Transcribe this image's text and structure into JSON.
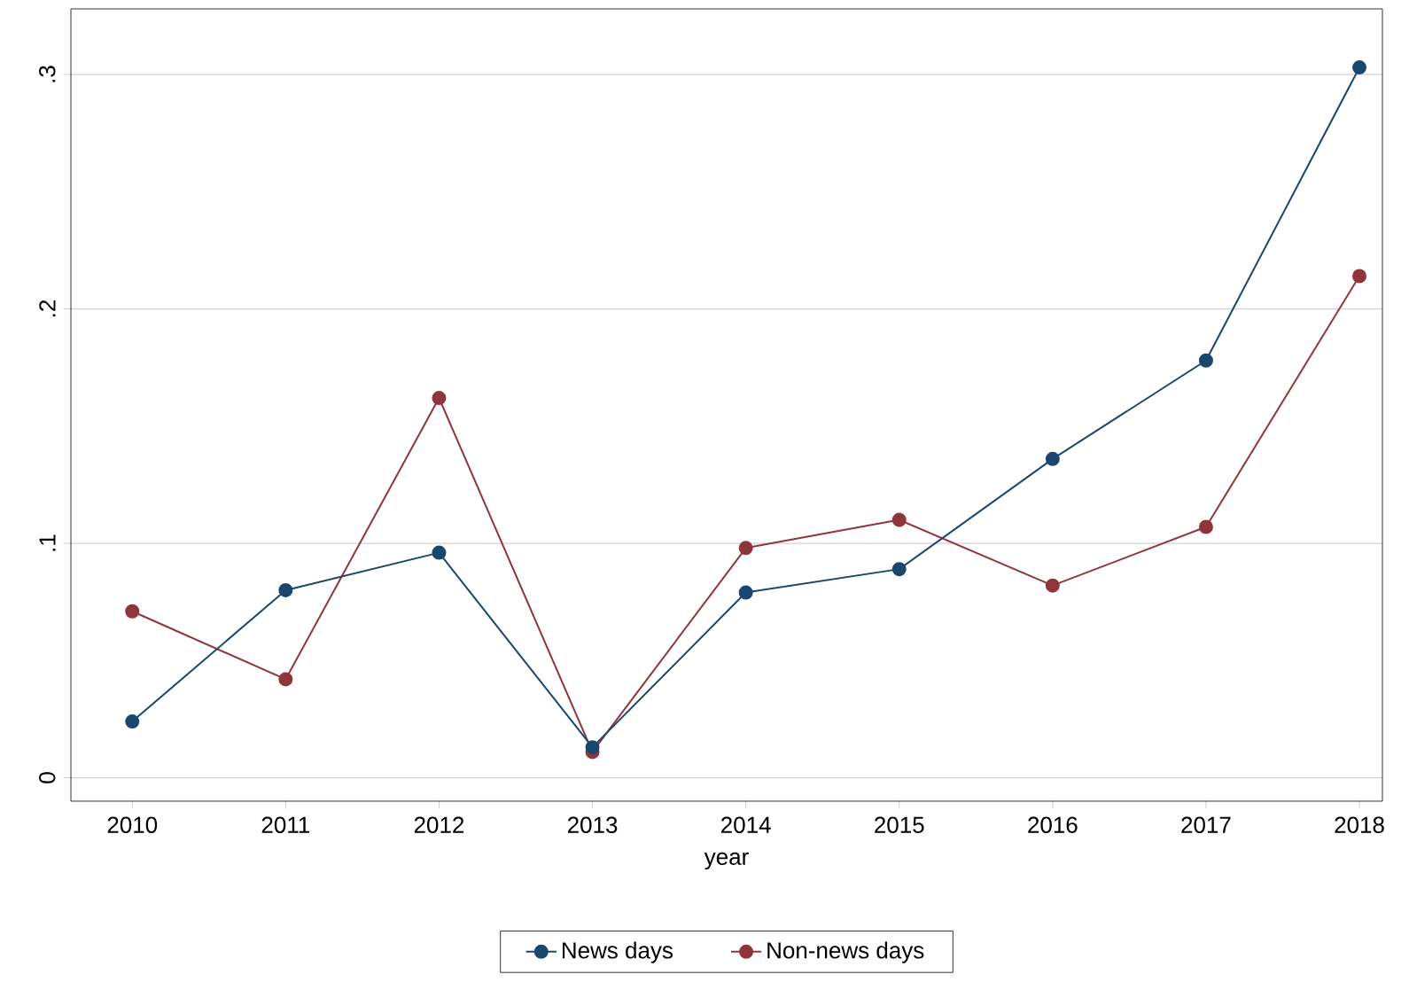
{
  "chart_data": {
    "type": "line",
    "xlabel": "year",
    "x": [
      2010,
      2011,
      2012,
      2013,
      2014,
      2015,
      2016,
      2017,
      2018
    ],
    "series": [
      {
        "name": "News days",
        "color": "#1a476f",
        "values": [
          0.024,
          0.08,
          0.096,
          0.013,
          0.079,
          0.089,
          0.136,
          0.178,
          0.303
        ]
      },
      {
        "name": "Non-news days",
        "color": "#90353b",
        "values": [
          0.071,
          0.042,
          0.162,
          0.011,
          0.098,
          0.11,
          0.082,
          0.107,
          0.214
        ]
      }
    ],
    "xlim": [
      2009.6,
      2018.15
    ],
    "ylim": [
      -0.01,
      0.328
    ],
    "xticks": [
      2010,
      2011,
      2012,
      2013,
      2014,
      2015,
      2016,
      2017,
      2018
    ],
    "yticks": [
      0,
      {
        "value": 0.1,
        "label": ".1"
      },
      {
        "value": 0.2,
        "label": ".2"
      },
      {
        "value": 0.3,
        "label": ".3"
      }
    ],
    "grid": "y",
    "legend": "bottom",
    "marker": "circle",
    "line_style": "solid"
  }
}
